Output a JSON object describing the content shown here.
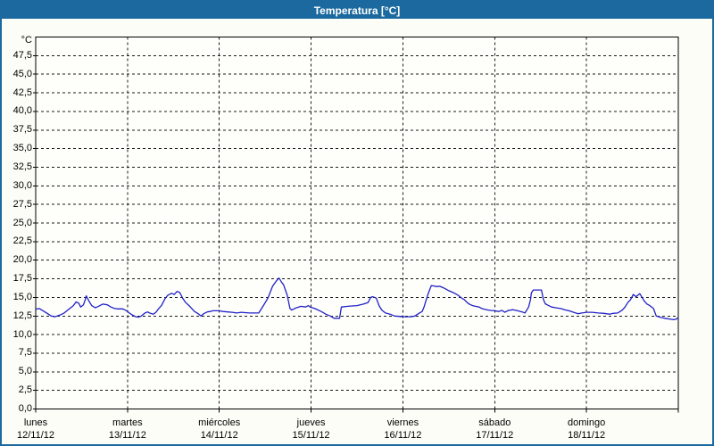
{
  "window": {
    "title": "Temperatura [°C]"
  },
  "colors": {
    "frame": "#1b699e",
    "titlebar_bg": "#1b699e",
    "title_text": "#ffffff",
    "background": "#fdfdf7",
    "plot_background": "#fefefa",
    "grid": "#1a1a1a",
    "axis": "#000000",
    "line": "#2121c8"
  },
  "chart_data": {
    "type": "line",
    "title": "Temperatura [°C]",
    "y_unit_label": "°C",
    "ylabel": "°C",
    "xlabel": "",
    "ylim": [
      0,
      50
    ],
    "ytick_step": 2.5,
    "decimal_separator": ",",
    "grid": "dashed",
    "legend": "none",
    "ytick_labels": [
      "0,0",
      "2,5",
      "5,0",
      "7,5",
      "10,0",
      "12,5",
      "15,0",
      "17,5",
      "20,0",
      "22,5",
      "25,0",
      "27,5",
      "30,0",
      "32,5",
      "35,0",
      "37,5",
      "40,0",
      "42,5",
      "45,0",
      "47,5"
    ],
    "x_categories": [
      {
        "weekday": "lunes",
        "date": "12/11/12"
      },
      {
        "weekday": "martes",
        "date": "13/11/12"
      },
      {
        "weekday": "miércoles",
        "date": "14/11/12"
      },
      {
        "weekday": "jueves",
        "date": "15/11/12"
      },
      {
        "weekday": "viernes",
        "date": "16/11/12"
      },
      {
        "weekday": "sábado",
        "date": "17/11/12"
      },
      {
        "weekday": "domingo",
        "date": "18/11/12"
      }
    ],
    "series": [
      {
        "name": "Temperatura",
        "color": "#2121c8",
        "points": [
          [
            0.0,
            13.4
          ],
          [
            0.04,
            13.5
          ],
          [
            0.08,
            13.2
          ],
          [
            0.12,
            12.9
          ],
          [
            0.17,
            12.5
          ],
          [
            0.21,
            12.4
          ],
          [
            0.26,
            12.6
          ],
          [
            0.31,
            12.9
          ],
          [
            0.36,
            13.4
          ],
          [
            0.41,
            13.9
          ],
          [
            0.44,
            14.4
          ],
          [
            0.47,
            14.2
          ],
          [
            0.49,
            13.7
          ],
          [
            0.52,
            14.0
          ],
          [
            0.54,
            14.7
          ],
          [
            0.55,
            15.2
          ],
          [
            0.58,
            14.5
          ],
          [
            0.61,
            13.9
          ],
          [
            0.65,
            13.6
          ],
          [
            0.7,
            13.9
          ],
          [
            0.73,
            14.1
          ],
          [
            0.78,
            14.0
          ],
          [
            0.82,
            13.7
          ],
          [
            0.86,
            13.5
          ],
          [
            0.9,
            13.45
          ],
          [
            0.95,
            13.45
          ],
          [
            0.99,
            13.2
          ],
          [
            1.02,
            12.9
          ],
          [
            1.05,
            12.65
          ],
          [
            1.09,
            12.4
          ],
          [
            1.12,
            12.35
          ],
          [
            1.15,
            12.5
          ],
          [
            1.19,
            12.9
          ],
          [
            1.22,
            13.05
          ],
          [
            1.24,
            12.9
          ],
          [
            1.28,
            12.75
          ],
          [
            1.31,
            13.0
          ],
          [
            1.34,
            13.5
          ],
          [
            1.37,
            13.9
          ],
          [
            1.41,
            14.85
          ],
          [
            1.44,
            15.3
          ],
          [
            1.48,
            15.55
          ],
          [
            1.51,
            15.4
          ],
          [
            1.54,
            15.8
          ],
          [
            1.57,
            15.65
          ],
          [
            1.6,
            14.9
          ],
          [
            1.63,
            14.35
          ],
          [
            1.67,
            13.9
          ],
          [
            1.7,
            13.5
          ],
          [
            1.73,
            13.1
          ],
          [
            1.77,
            12.8
          ],
          [
            1.8,
            12.5
          ],
          [
            1.83,
            12.8
          ],
          [
            1.87,
            13.05
          ],
          [
            1.9,
            13.1
          ],
          [
            1.93,
            13.2
          ],
          [
            1.96,
            13.2
          ],
          [
            2.0,
            13.2
          ],
          [
            2.04,
            13.1
          ],
          [
            2.09,
            13.05
          ],
          [
            2.14,
            13.0
          ],
          [
            2.19,
            12.9
          ],
          [
            2.24,
            13.0
          ],
          [
            2.28,
            12.95
          ],
          [
            2.33,
            12.9
          ],
          [
            2.38,
            12.9
          ],
          [
            2.43,
            12.9
          ],
          [
            2.48,
            13.9
          ],
          [
            2.53,
            14.9
          ],
          [
            2.58,
            16.5
          ],
          [
            2.62,
            17.2
          ],
          [
            2.65,
            17.6
          ],
          [
            2.68,
            17.0
          ],
          [
            2.7,
            16.7
          ],
          [
            2.74,
            15.3
          ],
          [
            2.77,
            13.5
          ],
          [
            2.79,
            13.3
          ],
          [
            2.82,
            13.5
          ],
          [
            2.85,
            13.65
          ],
          [
            2.89,
            13.8
          ],
          [
            2.94,
            13.7
          ],
          [
            2.97,
            13.9
          ],
          [
            2.99,
            13.7
          ],
          [
            3.04,
            13.5
          ],
          [
            3.11,
            13.1
          ],
          [
            3.16,
            12.75
          ],
          [
            3.21,
            12.5
          ],
          [
            3.25,
            12.2
          ],
          [
            3.31,
            12.2
          ],
          [
            3.33,
            13.7
          ],
          [
            3.4,
            13.8
          ],
          [
            3.5,
            13.9
          ],
          [
            3.57,
            14.1
          ],
          [
            3.62,
            14.3
          ],
          [
            3.65,
            15.0
          ],
          [
            3.67,
            15.1
          ],
          [
            3.71,
            14.9
          ],
          [
            3.74,
            13.9
          ],
          [
            3.77,
            13.3
          ],
          [
            3.81,
            12.9
          ],
          [
            3.86,
            12.75
          ],
          [
            3.91,
            12.5
          ],
          [
            3.96,
            12.45
          ],
          [
            4.0,
            12.4
          ],
          [
            4.03,
            12.4
          ],
          [
            4.08,
            12.4
          ],
          [
            4.13,
            12.5
          ],
          [
            4.18,
            12.9
          ],
          [
            4.21,
            13.1
          ],
          [
            4.23,
            13.7
          ],
          [
            4.25,
            14.5
          ],
          [
            4.27,
            15.3
          ],
          [
            4.29,
            16.0
          ],
          [
            4.31,
            16.6
          ],
          [
            4.35,
            16.5
          ],
          [
            4.37,
            16.45
          ],
          [
            4.4,
            16.5
          ],
          [
            4.44,
            16.3
          ],
          [
            4.47,
            16.1
          ],
          [
            4.5,
            15.9
          ],
          [
            4.54,
            15.7
          ],
          [
            4.57,
            15.5
          ],
          [
            4.6,
            15.3
          ],
          [
            4.64,
            14.9
          ],
          [
            4.67,
            14.7
          ],
          [
            4.7,
            14.3
          ],
          [
            4.73,
            14.05
          ],
          [
            4.76,
            13.9
          ],
          [
            4.79,
            13.8
          ],
          [
            4.83,
            13.7
          ],
          [
            4.86,
            13.5
          ],
          [
            4.89,
            13.4
          ],
          [
            4.93,
            13.3
          ],
          [
            4.96,
            13.25
          ],
          [
            5.0,
            13.2
          ],
          [
            5.04,
            13.1
          ],
          [
            5.08,
            13.25
          ],
          [
            5.11,
            13.0
          ],
          [
            5.15,
            13.25
          ],
          [
            5.2,
            13.35
          ],
          [
            5.25,
            13.2
          ],
          [
            5.3,
            13.05
          ],
          [
            5.33,
            12.9
          ],
          [
            5.37,
            13.7
          ],
          [
            5.39,
            14.7
          ],
          [
            5.4,
            15.6
          ],
          [
            5.42,
            16.0
          ],
          [
            5.47,
            16.0
          ],
          [
            5.51,
            16.0
          ],
          [
            5.53,
            14.75
          ],
          [
            5.55,
            14.15
          ],
          [
            5.58,
            13.95
          ],
          [
            5.62,
            13.7
          ],
          [
            5.67,
            13.6
          ],
          [
            5.72,
            13.5
          ],
          [
            5.76,
            13.35
          ],
          [
            5.81,
            13.2
          ],
          [
            5.86,
            13.0
          ],
          [
            5.91,
            12.8
          ],
          [
            5.95,
            12.9
          ],
          [
            6.0,
            13.0
          ],
          [
            6.06,
            13.0
          ],
          [
            6.13,
            12.9
          ],
          [
            6.19,
            12.85
          ],
          [
            6.25,
            12.75
          ],
          [
            6.29,
            12.85
          ],
          [
            6.34,
            12.9
          ],
          [
            6.39,
            13.3
          ],
          [
            6.42,
            13.7
          ],
          [
            6.45,
            14.3
          ],
          [
            6.48,
            14.7
          ],
          [
            6.51,
            15.4
          ],
          [
            6.54,
            15.1
          ],
          [
            6.58,
            15.5
          ],
          [
            6.63,
            14.5
          ],
          [
            6.66,
            14.1
          ],
          [
            6.69,
            13.9
          ],
          [
            6.73,
            13.5
          ],
          [
            6.76,
            12.5
          ],
          [
            6.81,
            12.3
          ],
          [
            6.85,
            12.2
          ],
          [
            6.9,
            12.1
          ],
          [
            6.95,
            12.0
          ],
          [
            6.98,
            12.1
          ],
          [
            7.0,
            12.3
          ]
        ]
      }
    ]
  }
}
